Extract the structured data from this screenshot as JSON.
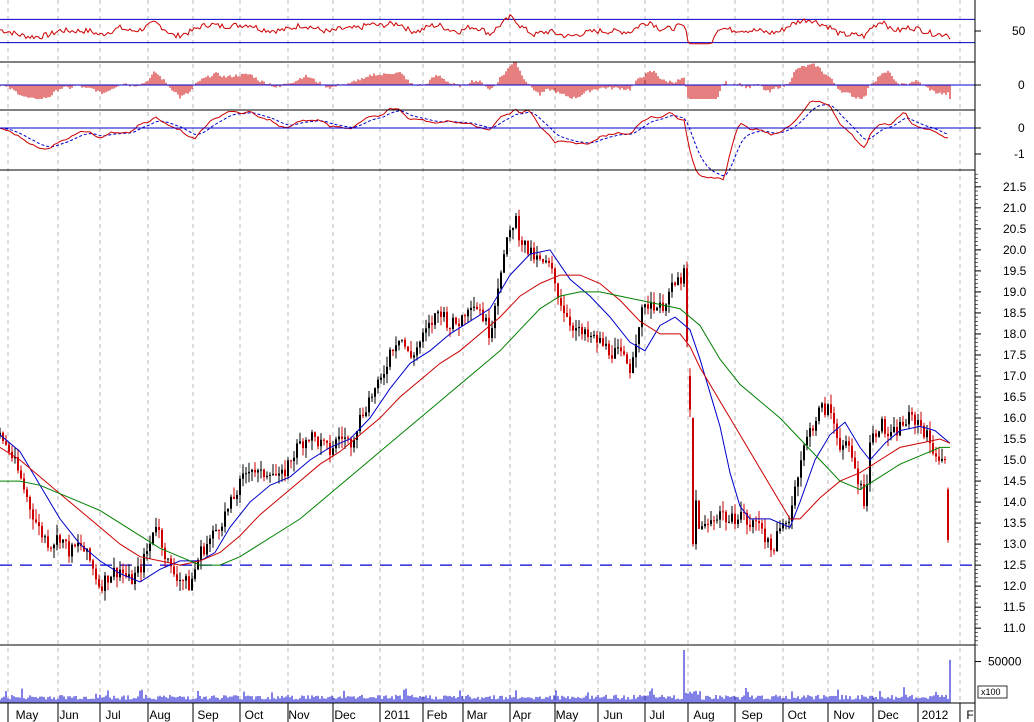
{
  "chart_data": {
    "type": "candlestick",
    "title": "",
    "panels": {
      "rsi": {
        "guides": [
          30,
          70
        ],
        "tick_labels": [
          "50"
        ],
        "ylim": [
          0,
          100
        ]
      },
      "macd_hist": {
        "tick_labels": [
          "0"
        ]
      },
      "macd_lines": {
        "tick_labels": [
          "0",
          "-1"
        ]
      },
      "price": {
        "ylim": [
          10.6,
          21.9
        ],
        "ticks": [
          11.0,
          11.5,
          12.0,
          12.5,
          13.0,
          13.5,
          14.0,
          14.5,
          15.0,
          15.5,
          16.0,
          16.5,
          17.0,
          17.5,
          18.0,
          18.5,
          19.0,
          19.5,
          20.0,
          20.5,
          21.0,
          21.5
        ],
        "tick_labels": [
          "11.0",
          "11.5",
          "12.0",
          "12.5",
          "13.0",
          "13.5",
          "14.0",
          "14.5",
          "15.0",
          "15.5",
          "16.0",
          "16.5",
          "17.0",
          "17.5",
          "18.0",
          "18.5",
          "19.0",
          "19.5",
          "20.0",
          "20.5",
          "21.0",
          "21.5"
        ],
        "support_line": 12.5,
        "moving_averages": [
          {
            "color": "#0000cc",
            "points": [
              [
                0,
                15.6
              ],
              [
                20,
                15.2
              ],
              [
                40,
                14.4
              ],
              [
                60,
                13.6
              ],
              [
                80,
                13.0
              ],
              [
                100,
                12.6
              ],
              [
                120,
                12.3
              ],
              [
                140,
                12.1
              ],
              [
                160,
                12.4
              ],
              [
                180,
                12.6
              ],
              [
                200,
                12.6
              ],
              [
                215,
                12.8
              ],
              [
                230,
                13.4
              ],
              [
                250,
                14.0
              ],
              [
                270,
                14.4
              ],
              [
                290,
                14.6
              ],
              [
                310,
                15.0
              ],
              [
                330,
                15.3
              ],
              [
                350,
                15.5
              ],
              [
                370,
                16.0
              ],
              [
                390,
                16.7
              ],
              [
                410,
                17.3
              ],
              [
                430,
                17.6
              ],
              [
                450,
                18.0
              ],
              [
                470,
                18.3
              ],
              [
                490,
                18.6
              ],
              [
                510,
                19.4
              ],
              [
                530,
                19.9
              ],
              [
                550,
                20.0
              ],
              [
                570,
                19.3
              ],
              [
                590,
                18.9
              ],
              [
                610,
                18.4
              ],
              [
                630,
                17.8
              ],
              [
                645,
                17.6
              ],
              [
                660,
                18.2
              ],
              [
                675,
                18.4
              ],
              [
                690,
                18.1
              ],
              [
                700,
                17.4
              ],
              [
                710,
                16.6
              ],
              [
                720,
                15.8
              ],
              [
                730,
                14.7
              ],
              [
                740,
                13.9
              ],
              [
                750,
                13.6
              ],
              [
                770,
                13.6
              ],
              [
                790,
                13.4
              ],
              [
                800,
                14.0
              ],
              [
                815,
                15.0
              ],
              [
                830,
                15.6
              ],
              [
                845,
                15.9
              ],
              [
                860,
                15.3
              ],
              [
                870,
                15.0
              ],
              [
                885,
                15.4
              ],
              [
                900,
                15.7
              ],
              [
                920,
                15.8
              ],
              [
                935,
                15.7
              ],
              [
                950,
                15.4
              ]
            ]
          },
          {
            "color": "#cc0000",
            "points": [
              [
                0,
                15.3
              ],
              [
                20,
                15.0
              ],
              [
                40,
                14.6
              ],
              [
                60,
                14.2
              ],
              [
                80,
                13.8
              ],
              [
                100,
                13.4
              ],
              [
                120,
                13.0
              ],
              [
                140,
                12.7
              ],
              [
                160,
                12.6
              ],
              [
                180,
                12.5
              ],
              [
                200,
                12.6
              ],
              [
                220,
                12.8
              ],
              [
                240,
                13.2
              ],
              [
                260,
                13.7
              ],
              [
                280,
                14.1
              ],
              [
                300,
                14.5
              ],
              [
                320,
                14.9
              ],
              [
                340,
                15.2
              ],
              [
                360,
                15.6
              ],
              [
                380,
                16.0
              ],
              [
                400,
                16.5
              ],
              [
                420,
                16.9
              ],
              [
                440,
                17.3
              ],
              [
                460,
                17.6
              ],
              [
                480,
                18.0
              ],
              [
                500,
                18.4
              ],
              [
                520,
                18.9
              ],
              [
                540,
                19.2
              ],
              [
                560,
                19.4
              ],
              [
                580,
                19.4
              ],
              [
                600,
                19.2
              ],
              [
                620,
                18.8
              ],
              [
                640,
                18.3
              ],
              [
                660,
                18.0
              ],
              [
                680,
                18.0
              ],
              [
                690,
                17.7
              ],
              [
                700,
                17.2
              ],
              [
                720,
                16.4
              ],
              [
                740,
                15.6
              ],
              [
                760,
                14.8
              ],
              [
                780,
                14.0
              ],
              [
                790,
                13.6
              ],
              [
                800,
                13.6
              ],
              [
                820,
                14.1
              ],
              [
                840,
                14.5
              ],
              [
                860,
                14.7
              ],
              [
                880,
                15.0
              ],
              [
                900,
                15.3
              ],
              [
                920,
                15.4
              ],
              [
                940,
                15.5
              ],
              [
                950,
                15.4
              ]
            ]
          },
          {
            "color": "#008000",
            "points": [
              [
                0,
                14.5
              ],
              [
                20,
                14.5
              ],
              [
                40,
                14.4
              ],
              [
                60,
                14.2
              ],
              [
                80,
                14.0
              ],
              [
                100,
                13.8
              ],
              [
                120,
                13.5
              ],
              [
                140,
                13.2
              ],
              [
                160,
                12.9
              ],
              [
                180,
                12.7
              ],
              [
                200,
                12.5
              ],
              [
                220,
                12.5
              ],
              [
                240,
                12.7
              ],
              [
                260,
                13.0
              ],
              [
                280,
                13.3
              ],
              [
                300,
                13.6
              ],
              [
                320,
                14.0
              ],
              [
                340,
                14.4
              ],
              [
                360,
                14.8
              ],
              [
                380,
                15.2
              ],
              [
                400,
                15.6
              ],
              [
                420,
                16.0
              ],
              [
                440,
                16.4
              ],
              [
                460,
                16.8
              ],
              [
                480,
                17.2
              ],
              [
                500,
                17.6
              ],
              [
                520,
                18.1
              ],
              [
                540,
                18.6
              ],
              [
                560,
                18.9
              ],
              [
                580,
                19.0
              ],
              [
                600,
                19.0
              ],
              [
                620,
                18.9
              ],
              [
                640,
                18.8
              ],
              [
                660,
                18.7
              ],
              [
                680,
                18.6
              ],
              [
                700,
                18.2
              ],
              [
                720,
                17.4
              ],
              [
                740,
                16.8
              ],
              [
                760,
                16.4
              ],
              [
                780,
                16.0
              ],
              [
                800,
                15.5
              ],
              [
                820,
                15.0
              ],
              [
                840,
                14.5
              ],
              [
                860,
                14.3
              ],
              [
                880,
                14.6
              ],
              [
                900,
                14.9
              ],
              [
                920,
                15.1
              ],
              [
                940,
                15.3
              ],
              [
                950,
                15.3
              ]
            ]
          }
        ]
      },
      "volume": {
        "unit_label": "x100",
        "tick_labels": [
          "50000"
        ],
        "ymax": 70000
      }
    },
    "x_axis": {
      "range": [
        0,
        975
      ],
      "months": [
        {
          "label": "May",
          "x": 27
        },
        {
          "label": "Jun",
          "x": 69
        },
        {
          "label": "Jul",
          "x": 113
        },
        {
          "label": "Aug",
          "x": 160
        },
        {
          "label": "Sep",
          "x": 208
        },
        {
          "label": "Oct",
          "x": 254
        },
        {
          "label": "Nov",
          "x": 299
        },
        {
          "label": "Dec",
          "x": 345
        },
        {
          "label": "2011",
          "x": 397
        },
        {
          "label": "Feb",
          "x": 437
        },
        {
          "label": "Mar",
          "x": 477
        },
        {
          "label": "Apr",
          "x": 522
        },
        {
          "label": "May",
          "x": 567
        },
        {
          "label": "Jun",
          "x": 613
        },
        {
          "label": "Jul",
          "x": 657
        },
        {
          "label": "Aug",
          "x": 704
        },
        {
          "label": "Sep",
          "x": 752
        },
        {
          "label": "Oct",
          "x": 797
        },
        {
          "label": "Nov",
          "x": 844
        },
        {
          "label": "Dec",
          "x": 888
        },
        {
          "label": "2012",
          "x": 935
        },
        {
          "label": "F",
          "x": 970
        }
      ],
      "gridlines": [
        8,
        58,
        100,
        148,
        193,
        240,
        288,
        333,
        380,
        423,
        463,
        510,
        555,
        598,
        645,
        688,
        735,
        783,
        828,
        873,
        918,
        960
      ]
    },
    "price_path": [
      [
        0,
        15.6
      ],
      [
        10,
        15.2
      ],
      [
        20,
        14.6
      ],
      [
        30,
        13.9
      ],
      [
        40,
        13.3
      ],
      [
        50,
        13.0
      ],
      [
        60,
        13.2
      ],
      [
        70,
        12.8
      ],
      [
        80,
        13.0
      ],
      [
        90,
        12.6
      ],
      [
        100,
        12.0
      ],
      [
        110,
        12.3
      ],
      [
        120,
        12.4
      ],
      [
        130,
        12.1
      ],
      [
        140,
        12.4
      ],
      [
        150,
        13.0
      ],
      [
        155,
        13.6
      ],
      [
        160,
        13.2
      ],
      [
        170,
        12.4
      ],
      [
        180,
        12.2
      ],
      [
        190,
        12.0
      ],
      [
        200,
        12.8
      ],
      [
        210,
        13.1
      ],
      [
        220,
        13.5
      ],
      [
        230,
        13.9
      ],
      [
        240,
        14.4
      ],
      [
        250,
        14.9
      ],
      [
        260,
        14.6
      ],
      [
        270,
        14.8
      ],
      [
        280,
        14.5
      ],
      [
        290,
        15.0
      ],
      [
        300,
        15.4
      ],
      [
        310,
        15.6
      ],
      [
        320,
        15.4
      ],
      [
        330,
        15.2
      ],
      [
        340,
        15.6
      ],
      [
        350,
        15.4
      ],
      [
        360,
        16.0
      ],
      [
        370,
        16.5
      ],
      [
        380,
        16.8
      ],
      [
        390,
        17.6
      ],
      [
        400,
        18.0
      ],
      [
        410,
        17.4
      ],
      [
        420,
        17.8
      ],
      [
        430,
        18.2
      ],
      [
        440,
        18.6
      ],
      [
        450,
        18.2
      ],
      [
        460,
        18.3
      ],
      [
        470,
        18.8
      ],
      [
        480,
        18.6
      ],
      [
        490,
        18.0
      ],
      [
        500,
        19.5
      ],
      [
        510,
        20.4
      ],
      [
        515,
        20.8
      ],
      [
        520,
        20.3
      ],
      [
        530,
        19.9
      ],
      [
        540,
        19.7
      ],
      [
        550,
        19.6
      ],
      [
        560,
        18.8
      ],
      [
        570,
        18.3
      ],
      [
        580,
        18.0
      ],
      [
        590,
        17.9
      ],
      [
        600,
        17.8
      ],
      [
        610,
        17.6
      ],
      [
        620,
        17.5
      ],
      [
        630,
        17.2
      ],
      [
        640,
        18.4
      ],
      [
        650,
        18.8
      ],
      [
        660,
        18.6
      ],
      [
        670,
        19.0
      ],
      [
        680,
        19.3
      ],
      [
        684,
        19.4
      ],
      [
        688,
        17.2
      ],
      [
        692,
        15.5
      ],
      [
        696,
        14.0
      ],
      [
        700,
        13.3
      ],
      [
        710,
        13.5
      ],
      [
        720,
        13.8
      ],
      [
        730,
        13.5
      ],
      [
        740,
        13.8
      ],
      [
        750,
        13.4
      ],
      [
        760,
        13.6
      ],
      [
        770,
        12.8
      ],
      [
        780,
        13.3
      ],
      [
        790,
        13.7
      ],
      [
        800,
        15.0
      ],
      [
        810,
        15.7
      ],
      [
        820,
        16.2
      ],
      [
        830,
        16.2
      ],
      [
        840,
        15.4
      ],
      [
        850,
        15.2
      ],
      [
        860,
        14.4
      ],
      [
        865,
        14.0
      ],
      [
        870,
        15.4
      ],
      [
        880,
        15.9
      ],
      [
        890,
        15.5
      ],
      [
        900,
        15.8
      ],
      [
        910,
        16.0
      ],
      [
        920,
        15.9
      ],
      [
        930,
        15.4
      ],
      [
        940,
        15.0
      ],
      [
        948,
        14.8
      ],
      [
        950,
        13.6
      ]
    ]
  }
}
